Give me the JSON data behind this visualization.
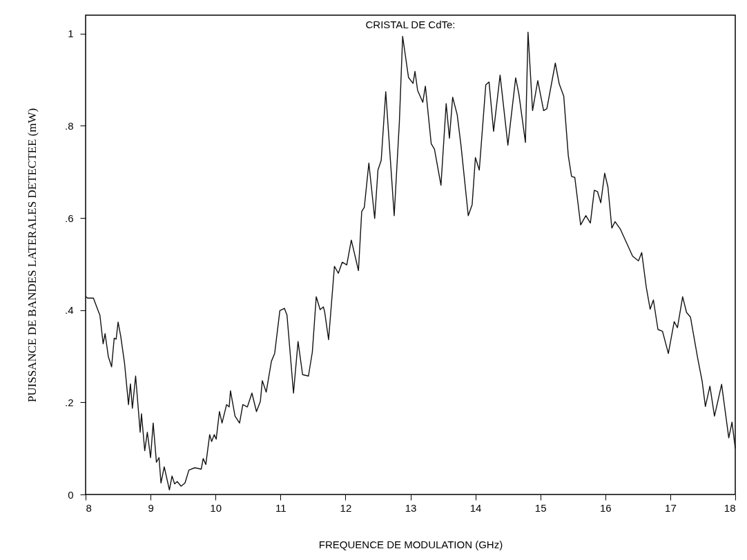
{
  "chart_data": {
    "type": "line",
    "title": "CRISTAL DE CdTe:",
    "xlabel": "FREQUENCE DE MODULATION (GHz)",
    "ylabel": "PUISSANCE DE BANDES LATERALES DETECTEE (mW)",
    "xlim": [
      8,
      18
    ],
    "xticks": [
      8,
      9,
      10,
      11,
      12,
      13,
      14,
      15,
      16,
      17,
      18
    ],
    "ylim": [
      0,
      1.04
    ],
    "yticks": [
      0,
      {
        "value": 0.2,
        "label": ".2"
      },
      {
        "value": 0.4,
        "label": ".4"
      },
      {
        "value": 0.6,
        "label": ".6"
      },
      {
        "value": 0.8,
        "label": ".8"
      },
      1
    ],
    "grid": false,
    "marker": "none",
    "line_style": "solid",
    "series": [
      {
        "color": "#111111",
        "x": [
          8.0,
          8.03,
          8.12,
          8.19,
          8.22,
          8.27,
          8.3,
          8.35,
          8.4,
          8.44,
          8.47,
          8.5,
          8.54,
          8.6,
          8.66,
          8.69,
          8.72,
          8.77,
          8.84,
          8.86,
          8.91,
          8.95,
          9.0,
          9.04,
          9.09,
          9.13,
          9.16,
          9.21,
          9.29,
          9.33,
          9.37,
          9.41,
          9.47,
          9.53,
          9.59,
          9.68,
          9.78,
          9.81,
          9.85,
          9.91,
          9.94,
          9.98,
          10.01,
          10.06,
          10.1,
          10.17,
          10.21,
          10.23,
          10.3,
          10.37,
          10.42,
          10.49,
          10.56,
          10.63,
          10.69,
          10.72,
          10.78,
          10.86,
          10.91,
          10.99,
          11.06,
          11.1,
          11.2,
          11.27,
          11.34,
          11.43,
          11.49,
          11.55,
          11.61,
          11.66,
          11.68,
          11.74,
          11.83,
          11.89,
          11.95,
          12.02,
          12.09,
          12.2,
          12.25,
          12.29,
          12.36,
          12.45,
          12.5,
          12.55,
          12.62,
          12.75,
          12.83,
          12.88,
          12.97,
          13.04,
          13.07,
          13.11,
          13.19,
          13.23,
          13.32,
          13.37,
          13.47,
          13.55,
          13.6,
          13.65,
          13.72,
          13.78,
          13.89,
          13.95,
          14.0,
          14.06,
          14.16,
          14.21,
          14.28,
          14.38,
          14.5,
          14.62,
          14.67,
          14.77,
          14.81,
          14.88,
          14.96,
          15.05,
          15.1,
          15.23,
          15.29,
          15.36,
          15.43,
          15.48,
          15.53,
          15.62,
          15.7,
          15.77,
          15.83,
          15.88,
          15.93,
          15.99,
          16.04,
          16.1,
          16.15,
          16.23,
          16.33,
          16.42,
          16.51,
          16.56,
          16.63,
          16.69,
          16.74,
          16.81,
          16.88,
          16.97,
          17.06,
          17.11,
          17.19,
          17.25,
          17.31,
          17.42,
          17.49,
          17.54,
          17.61,
          17.68,
          17.79,
          17.9,
          17.95,
          18.0
        ],
        "values": [
          0.43,
          0.426,
          0.426,
          0.4,
          0.389,
          0.327,
          0.349,
          0.299,
          0.277,
          0.339,
          0.337,
          0.374,
          0.344,
          0.284,
          0.195,
          0.24,
          0.187,
          0.257,
          0.135,
          0.175,
          0.095,
          0.135,
          0.08,
          0.155,
          0.07,
          0.08,
          0.025,
          0.06,
          0.01,
          0.04,
          0.023,
          0.028,
          0.018,
          0.025,
          0.053,
          0.058,
          0.055,
          0.078,
          0.065,
          0.13,
          0.115,
          0.13,
          0.12,
          0.18,
          0.155,
          0.195,
          0.19,
          0.225,
          0.17,
          0.155,
          0.195,
          0.19,
          0.22,
          0.18,
          0.202,
          0.247,
          0.222,
          0.289,
          0.306,
          0.399,
          0.404,
          0.389,
          0.22,
          0.332,
          0.26,
          0.257,
          0.309,
          0.429,
          0.401,
          0.407,
          0.396,
          0.336,
          0.495,
          0.48,
          0.504,
          0.498,
          0.552,
          0.486,
          0.614,
          0.623,
          0.719,
          0.599,
          0.704,
          0.725,
          0.874,
          0.605,
          0.809,
          0.994,
          0.905,
          0.892,
          0.918,
          0.877,
          0.851,
          0.886,
          0.761,
          0.749,
          0.671,
          0.848,
          0.773,
          0.862,
          0.824,
          0.755,
          0.605,
          0.629,
          0.731,
          0.704,
          0.889,
          0.895,
          0.788,
          0.91,
          0.758,
          0.904,
          0.868,
          0.764,
          1.003,
          0.833,
          0.898,
          0.833,
          0.837,
          0.936,
          0.891,
          0.864,
          0.735,
          0.69,
          0.688,
          0.585,
          0.605,
          0.589,
          0.66,
          0.657,
          0.633,
          0.697,
          0.667,
          0.578,
          0.592,
          0.576,
          0.545,
          0.517,
          0.507,
          0.525,
          0.45,
          0.402,
          0.422,
          0.358,
          0.354,
          0.306,
          0.375,
          0.362,
          0.429,
          0.395,
          0.385,
          0.297,
          0.246,
          0.191,
          0.235,
          0.17,
          0.239,
          0.123,
          0.157,
          0.1
        ]
      }
    ]
  }
}
